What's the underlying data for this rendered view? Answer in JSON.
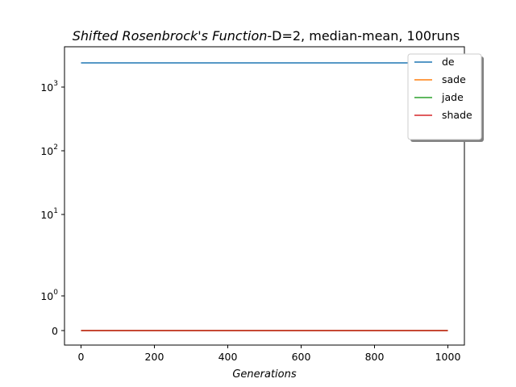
{
  "chart_data": {
    "type": "line",
    "title_italic": "Shifted Rosenbrock's Function",
    "title_rest": "-D=2, median-mean, 100runs",
    "xlabel": "Generations",
    "ylabel": "",
    "xlim": [
      -45,
      1045
    ],
    "x_ticks": [
      "0",
      "200",
      "400",
      "600",
      "800",
      "1000"
    ],
    "y_scale": "symlog",
    "y_ticks": [
      {
        "base": "0",
        "exp": ""
      },
      {
        "base": "10",
        "exp": "0"
      },
      {
        "base": "10",
        "exp": "1"
      },
      {
        "base": "10",
        "exp": "2"
      },
      {
        "base": "10",
        "exp": "3"
      }
    ],
    "legend_position": "upper right",
    "series": [
      {
        "name": "de",
        "color": "#1f77b4",
        "x": [
          0,
          1000
        ],
        "y": [
          2400,
          2400
        ]
      },
      {
        "name": "sade",
        "color": "#ff7f0e",
        "x": [
          0,
          1000
        ],
        "y": [
          0,
          0
        ]
      },
      {
        "name": "jade",
        "color": "#2ca02c",
        "x": [
          0,
          1000
        ],
        "y": [
          0,
          0
        ]
      },
      {
        "name": "shade",
        "color": "#d62728",
        "x": [
          0,
          1000
        ],
        "y": [
          0,
          0
        ]
      }
    ]
  }
}
